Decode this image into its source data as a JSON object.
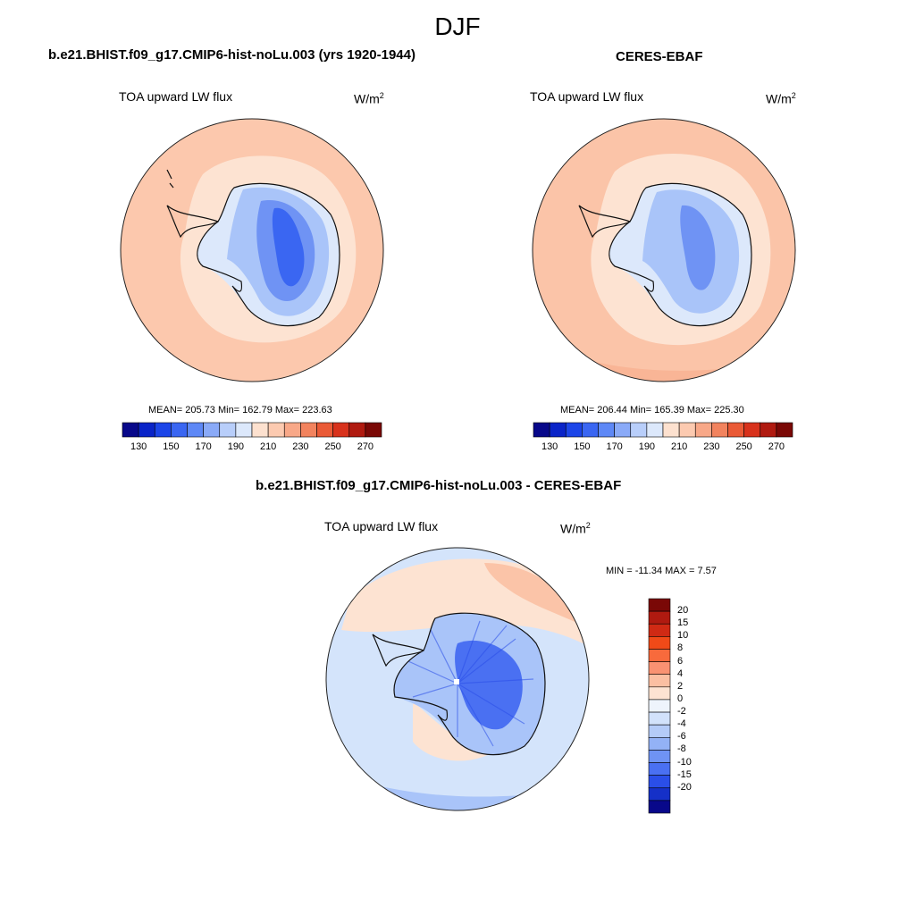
{
  "figure": {
    "season": "DJF",
    "variable": "TOA upward LW flux",
    "units_base": "W/m",
    "units_exp": "2"
  },
  "panels": {
    "model": {
      "title": "b.e21.BHIST.f09_g17.CMIP6-hist-noLu.003 (yrs 1920-1944)",
      "stats": "MEAN= 205.73  Min= 162.79  Max= 223.63"
    },
    "obs": {
      "title": "CERES-EBAF",
      "stats": "MEAN= 206.44  Min= 165.39  Max= 225.30"
    },
    "diff": {
      "title": "b.e21.BHIST.f09_g17.CMIP6-hist-noLu.003 - CERES-EBAF",
      "stats": "MIN = -11.34 MAX =   7.57"
    }
  },
  "abs_colorbar": {
    "colors": [
      "#08088a",
      "#0a24c8",
      "#1c45e8",
      "#3a66f2",
      "#5e88f6",
      "#8aaaf8",
      "#b8cefa",
      "#dce8fb",
      "#fde1cf",
      "#fccab0",
      "#f8a888",
      "#f2835e",
      "#ea5a36",
      "#d8321c",
      "#b01a10",
      "#7a0806"
    ],
    "tick_labels": [
      "130",
      "150",
      "170",
      "190",
      "210",
      "230",
      "250",
      "270"
    ]
  },
  "diff_colorbar": {
    "colors": [
      "#7a0806",
      "#b01a10",
      "#d02a14",
      "#f04a18",
      "#f86a3c",
      "#f99272",
      "#fbbfa2",
      "#fde3d2",
      "#eef4fc",
      "#d2e2fb",
      "#b4cbf8",
      "#93b2f6",
      "#6f93f4",
      "#4a70f2",
      "#2a4ee8",
      "#1530c8",
      "#08088a"
    ],
    "labels": [
      "20",
      "15",
      "10",
      "8",
      "6",
      "4",
      "2",
      "0",
      "-2",
      "-4",
      "-6",
      "-8",
      "-10",
      "-15",
      "-20"
    ]
  },
  "map_colors": {
    "ocean_model": "#fcc8ad",
    "ocean_obs": "#fbc4a8",
    "band_light": "#fde3d2",
    "ice_light": "#dce8fb",
    "ice_mid": "#a9c4f9",
    "ice_deep": "#6f93f4",
    "ice_core": "#3a66f2",
    "diff_base": "#d4e4fb",
    "diff_pos": "#fde3d2",
    "diff_pos2": "#fbc4a8",
    "diff_neg": "#a9c4f9",
    "diff_neg2": "#4a70f2",
    "coast": "#111111"
  }
}
